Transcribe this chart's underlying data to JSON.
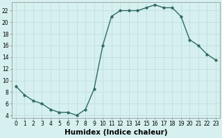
{
  "x": [
    0,
    1,
    2,
    3,
    4,
    5,
    6,
    7,
    8,
    9,
    10,
    11,
    12,
    13,
    14,
    15,
    16,
    17,
    18,
    19,
    20,
    21,
    22,
    23
  ],
  "y": [
    9.0,
    7.5,
    6.5,
    6.0,
    5.0,
    4.5,
    4.5,
    4.0,
    5.0,
    8.5,
    16.0,
    21.0,
    22.0,
    22.0,
    22.0,
    22.5,
    23.0,
    22.5,
    22.5,
    21.0,
    17.0,
    16.0,
    14.5,
    13.5
  ],
  "xlabel": "Humidex (Indice chaleur)",
  "ylim_min": 3.5,
  "ylim_max": 23.5,
  "xlim_min": -0.5,
  "xlim_max": 23.5,
  "yticks": [
    4,
    6,
    8,
    10,
    12,
    14,
    16,
    18,
    20,
    22
  ],
  "xticks": [
    0,
    1,
    2,
    3,
    4,
    5,
    6,
    7,
    8,
    9,
    10,
    11,
    12,
    13,
    14,
    15,
    16,
    17,
    18,
    19,
    20,
    21,
    22,
    23
  ],
  "xtick_labels": [
    "0",
    "1",
    "2",
    "3",
    "4",
    "5",
    "6",
    "7",
    "8",
    "9",
    "10",
    "11",
    "12",
    "13",
    "14",
    "15",
    "16",
    "17",
    "18",
    "19",
    "20",
    "21",
    "22",
    "23"
  ],
  "line_color": "#2e6b5e",
  "marker_color": "#2e6b5e",
  "bg_color": "#d6f0f0",
  "grid_color": "#c0dede",
  "tick_label_fontsize": 5.5,
  "xlabel_fontsize": 7.5,
  "marker_size": 2.5,
  "line_width": 1.0
}
